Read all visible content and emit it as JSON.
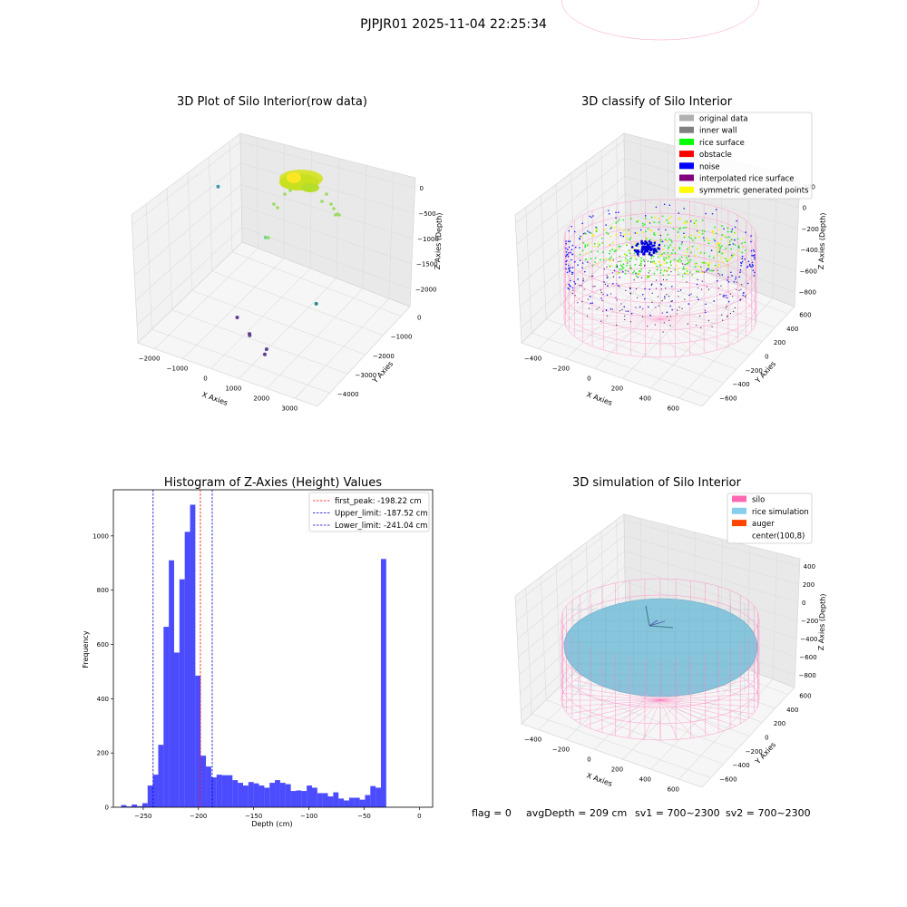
{
  "figure_title": "PJPJR01 2025-11-04 22:25:34",
  "status_line": {
    "flag": "flag = 0",
    "avg_depth": "avgDepth = 209 cm",
    "sv1": "sv1 = 700~2300",
    "sv2": "sv2 = 700~2300"
  },
  "colors": {
    "histogram_bar": "#0000ff",
    "first_peak_line": "#ff0000",
    "limit_line": "#0000cc",
    "silo": "#ff69b4",
    "rice_simulation": "#87ceeb",
    "auger": "#ff4500",
    "noise": "#0000ff",
    "rice_surface": "#00ff00",
    "symmetric_points": "#ffff00"
  },
  "chart_data": [
    {
      "type": "scatter3d",
      "title": "3D Plot of Silo Interior(row data)",
      "xlabel": "X Axies",
      "ylabel": "Y Axies",
      "zlabel": "Z Axies (Depth)",
      "x_ticks": [
        "−2000",
        "−1000",
        "0",
        "1000",
        "2000",
        "3000"
      ],
      "y_ticks": [
        "0",
        "−1000",
        "−2000",
        "−3000",
        "−4000"
      ],
      "z_ticks": [
        "0",
        "−500",
        "−1000",
        "−1500",
        "−2000"
      ],
      "colormap": "viridis",
      "outlier_points": [
        {
          "x": -2300,
          "y": 200,
          "z": -1100,
          "color": "#3b9bb0"
        },
        {
          "x": 1500,
          "y": -2200,
          "z": -200,
          "color": "#6fd49c"
        },
        {
          "x": 3100,
          "y": -1800,
          "z": -1600,
          "color": "#2a8a8a"
        },
        {
          "x": 500,
          "y": -2300,
          "z": -2300,
          "color": "#5d3f8e"
        },
        {
          "x": 1300,
          "y": -2700,
          "z": -2300,
          "color": "#5d3f8e"
        },
        {
          "x": 1350,
          "y": -2750,
          "z": -2300,
          "color": "#5d3f8e"
        },
        {
          "x": 2200,
          "y": -3000,
          "z": -2300,
          "color": "#5d3f8e"
        },
        {
          "x": 2300,
          "y": -3200,
          "z": -2300,
          "color": "#5d3f8e"
        }
      ]
    },
    {
      "type": "scatter3d",
      "title": "3D classify of Silo Interior",
      "xlabel": "X Axies",
      "ylabel": "Y Axies",
      "zlabel": "Z Axies (Depth)",
      "x_ticks": [
        "−400",
        "−200",
        "0",
        "200",
        "400",
        "600"
      ],
      "y_ticks": [
        "600",
        "400",
        "200",
        "0",
        "−200",
        "−400",
        "−600"
      ],
      "z_ticks": [
        "200",
        "0",
        "−200",
        "−400",
        "−600",
        "−800"
      ],
      "legend": [
        {
          "label": "original data",
          "color": "#b0b0b0"
        },
        {
          "label": "inner wall",
          "color": "#808080"
        },
        {
          "label": "rice surface",
          "color": "#00ff00"
        },
        {
          "label": "obstacle",
          "color": "#ff0000"
        },
        {
          "label": "noise",
          "color": "#0000ff"
        },
        {
          "label": "interpolated rice surface",
          "color": "#800080"
        },
        {
          "label": "symmetric generated points",
          "color": "#ffff00"
        }
      ]
    },
    {
      "type": "bar",
      "title": "Histogram of Z-Axies (Height) Values",
      "xlabel": "Depth (cm)",
      "ylabel": "Frequency",
      "xlim": [
        -277,
        12
      ],
      "ylim": [
        0,
        1170
      ],
      "x_ticks": [
        -250,
        -200,
        -150,
        -100,
        -50,
        0
      ],
      "y_ticks": [
        0,
        200,
        400,
        600,
        800,
        1000
      ],
      "bin_width": 4.8,
      "bins_start": -270,
      "values": [
        8,
        3,
        10,
        4,
        15,
        80,
        120,
        230,
        665,
        910,
        570,
        840,
        1015,
        1115,
        485,
        190,
        150,
        110,
        120,
        118,
        118,
        100,
        90,
        80,
        93,
        88,
        80,
        72,
        90,
        100,
        90,
        85,
        60,
        62,
        60,
        80,
        72,
        52,
        52,
        40,
        55,
        32,
        25,
        35,
        35,
        28,
        45,
        78,
        72,
        915
      ],
      "reference_lines": [
        {
          "label": "first_peak: -198.22 cm",
          "x": -198.22,
          "color": "#ff0000"
        },
        {
          "label": "Upper_limit: -187.52 cm",
          "x": -187.52,
          "color": "#0000cc"
        },
        {
          "label": "Lower_limit: -241.04 cm",
          "x": -241.04,
          "color": "#0000cc"
        }
      ]
    },
    {
      "type": "surface3d",
      "title": "3D simulation of Silo Interior",
      "xlabel": "X Axies",
      "ylabel": "Y Axies",
      "zlabel": "Z Axies (Depth)",
      "x_ticks": [
        "−400",
        "−200",
        "0",
        "200",
        "400",
        "600"
      ],
      "y_ticks": [
        "600",
        "400",
        "200",
        "0",
        "−200",
        "−400",
        "−600"
      ],
      "z_ticks": [
        "400",
        "200",
        "0",
        "−200",
        "−400",
        "−600",
        "−800"
      ],
      "legend": [
        {
          "label": "silo",
          "color": "#ff69b4"
        },
        {
          "label": "rice simulation",
          "color": "#87ceeb"
        },
        {
          "label": "auger",
          "color": "#ff4500"
        },
        {
          "label": "center(100,8)",
          "color": ""
        }
      ]
    }
  ]
}
